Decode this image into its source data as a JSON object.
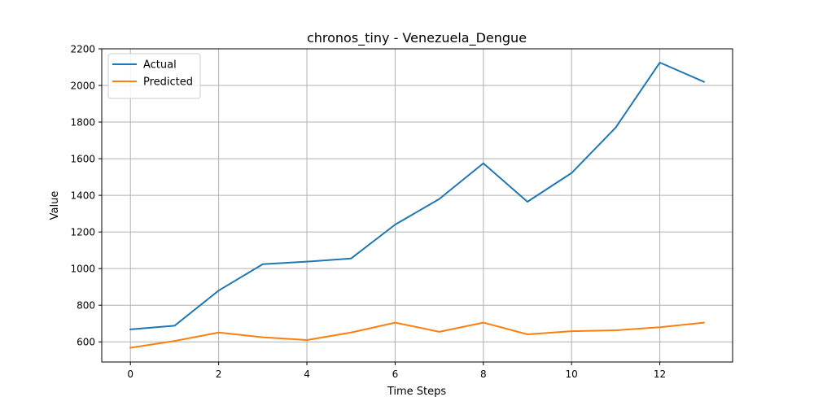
{
  "chart_data": {
    "type": "line",
    "title": "chronos_tiny - Venezuela_Dengue",
    "xlabel": "Time Steps",
    "ylabel": "Value",
    "x": [
      0,
      1,
      2,
      3,
      4,
      5,
      6,
      7,
      8,
      9,
      10,
      11,
      12,
      13
    ],
    "xlim": [
      -0.65,
      13.65
    ],
    "ylim": [
      490,
      2200
    ],
    "xticks": [
      0,
      2,
      4,
      6,
      8,
      10,
      12
    ],
    "yticks": [
      600,
      800,
      1000,
      1200,
      1400,
      1600,
      1800,
      2000,
      2200
    ],
    "grid": true,
    "legend_position": "top-left",
    "series": [
      {
        "name": "Actual",
        "color": "#1f77b4",
        "values": [
          668,
          688,
          880,
          1024,
          1038,
          1055,
          1240,
          1380,
          1575,
          1365,
          1522,
          1770,
          2125,
          2020
        ]
      },
      {
        "name": "Predicted",
        "color": "#ff7f0e",
        "values": [
          568,
          605,
          651,
          625,
          610,
          651,
          705,
          655,
          705,
          641,
          658,
          663,
          680,
          705
        ]
      }
    ]
  }
}
